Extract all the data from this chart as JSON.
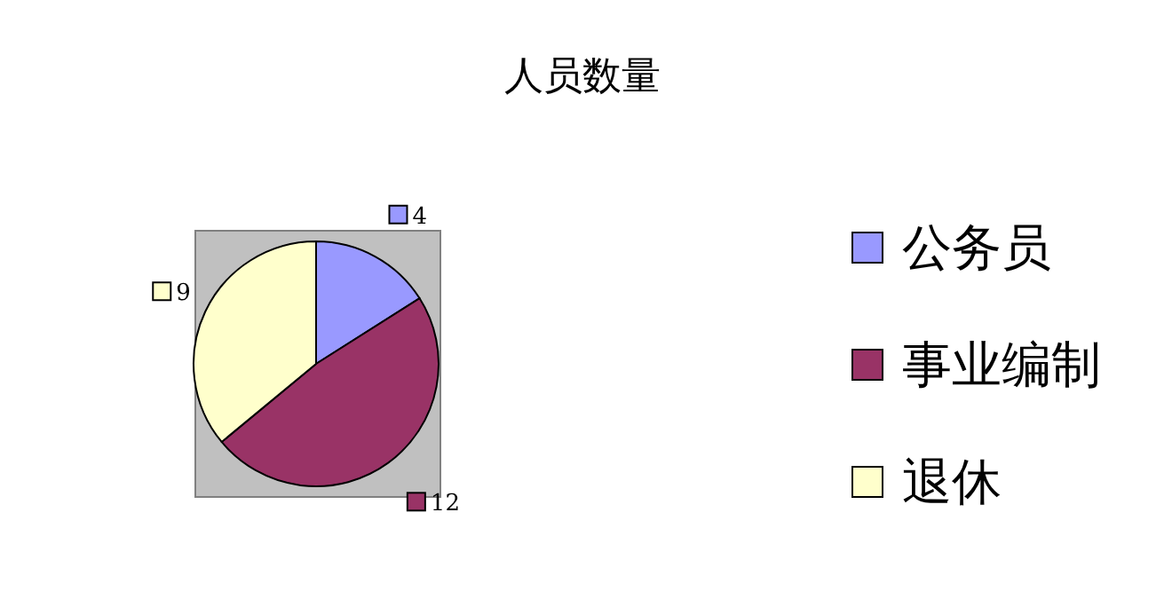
{
  "chart_data": {
    "type": "pie",
    "title": "人员数量",
    "categories": [
      "公务员",
      "事业编制",
      "退休"
    ],
    "values": [
      4,
      12,
      9
    ],
    "colors": [
      "#9999ff",
      "#993366",
      "#ffffcc"
    ],
    "data_labels": true,
    "legend": "right"
  }
}
